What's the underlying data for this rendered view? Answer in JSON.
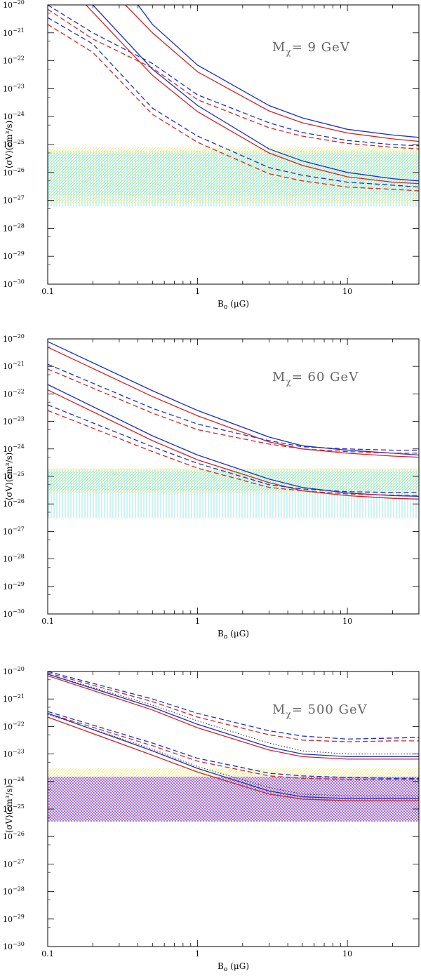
{
  "chart_data": [
    {
      "type": "line",
      "annotation_prefix": "M",
      "annotation_sub": "χ",
      "annotation_mass": "9 GeV",
      "xlabel_main": "B",
      "xlabel_sub": "o",
      "xlabel_unit": "(μG)",
      "ylabel": "⟨σV⟩(cm³/s)",
      "xscale": "log",
      "yscale": "log",
      "xlim": [
        0.1,
        30
      ],
      "ylim": [
        1e-30,
        1e-20
      ],
      "x_ticks": [
        {
          "v": 0.1,
          "label": "0.1"
        },
        {
          "v": 1,
          "label": "1"
        },
        {
          "v": 10,
          "label": "10"
        }
      ],
      "y_ticks": [
        {
          "exp": -20,
          "label": "10",
          "sup": "−20"
        },
        {
          "exp": -21,
          "label": "10",
          "sup": "−21"
        },
        {
          "exp": -22,
          "label": "10",
          "sup": "−22"
        },
        {
          "exp": -23,
          "label": "10",
          "sup": "−23"
        },
        {
          "exp": -24,
          "label": "10",
          "sup": "−24"
        },
        {
          "exp": -25,
          "label": "10",
          "sup": "−25"
        },
        {
          "exp": -26,
          "label": "10",
          "sup": "−26"
        },
        {
          "exp": -27,
          "label": "10",
          "sup": "−27"
        },
        {
          "exp": -28,
          "label": "10",
          "sup": "−28"
        },
        {
          "exp": -29,
          "label": "10",
          "sup": "−29"
        },
        {
          "exp": -30,
          "label": "10",
          "sup": "−30"
        }
      ],
      "bands": [
        {
          "name": "yellow-band",
          "color": "#f2ee7a",
          "pattern": "diag",
          "y_range": [
            8e-28,
            8e-26
          ]
        },
        {
          "name": "green-band",
          "color": "#a8e89a",
          "pattern": "diag",
          "y_range": [
            1.5e-27,
            5e-26
          ]
        },
        {
          "name": "cyan-band",
          "color": "#9be7ee",
          "pattern": "vert",
          "y_range": [
            6e-28,
            6e-26
          ]
        }
      ],
      "series": [
        {
          "name": "blue-solid-upper",
          "color": "#1a2fd0",
          "style": "solid",
          "x": [
            0.4,
            0.5,
            1,
            3,
            5,
            10,
            20,
            30
          ],
          "y": [
            1e-20,
            2e-21,
            7e-23,
            2.5e-24,
            9e-25,
            3.5e-25,
            2.2e-25,
            1.8e-25
          ]
        },
        {
          "name": "red-solid-upper",
          "color": "#d42424",
          "style": "solid",
          "x": [
            0.33,
            0.5,
            1,
            3,
            5,
            10,
            20,
            30
          ],
          "y": [
            1e-20,
            1e-21,
            4e-23,
            1.6e-24,
            6e-25,
            2.6e-25,
            1.6e-25,
            1.3e-25
          ]
        },
        {
          "name": "blue-dashed-upper",
          "color": "#1a2fd0",
          "style": "dashed",
          "x": [
            0.1,
            0.2,
            0.5,
            1,
            3,
            5,
            10,
            20,
            30
          ],
          "y": [
            1e-20,
            1e-21,
            8e-23,
            6e-24,
            6e-25,
            2.7e-25,
            1.4e-25,
            1e-25,
            9e-26
          ]
        },
        {
          "name": "red-dashed-upper",
          "color": "#d42424",
          "style": "dashed",
          "x": [
            0.1,
            0.2,
            0.5,
            1,
            3,
            5,
            10,
            20,
            30
          ],
          "y": [
            7e-21,
            6e-22,
            5.5e-23,
            4e-24,
            4e-25,
            2e-25,
            1.1e-25,
            8e-26,
            7e-26
          ]
        },
        {
          "name": "blue-solid-lower",
          "color": "#1a2fd0",
          "style": "solid",
          "x": [
            0.2,
            0.5,
            1,
            3,
            5,
            10,
            20,
            30
          ],
          "y": [
            1e-20,
            5e-23,
            2.5e-24,
            7e-26,
            2.6e-26,
            1e-26,
            6e-27,
            5e-27
          ]
        },
        {
          "name": "red-solid-lower",
          "color": "#d42424",
          "style": "solid",
          "x": [
            0.18,
            0.5,
            1,
            3,
            5,
            10,
            20,
            30
          ],
          "y": [
            1e-20,
            3e-23,
            1.5e-24,
            5e-26,
            1.8e-26,
            7e-27,
            4.5e-27,
            4e-27
          ]
        },
        {
          "name": "blue-dashed-lower",
          "color": "#1a2fd0",
          "style": "dashed",
          "x": [
            0.1,
            0.2,
            0.5,
            1,
            3,
            5,
            10,
            20,
            30
          ],
          "y": [
            3.5e-21,
            4e-22,
            2e-24,
            2e-25,
            1.5e-26,
            8e-27,
            4.5e-27,
            3.5e-27,
            3e-27
          ]
        },
        {
          "name": "red-dashed-lower",
          "color": "#d42424",
          "style": "dashed",
          "x": [
            0.1,
            0.2,
            0.5,
            1,
            3,
            5,
            10,
            20,
            30
          ],
          "y": [
            2e-21,
            2e-22,
            1.2e-24,
            1.2e-25,
            9e-27,
            5e-27,
            3e-27,
            2.5e-27,
            2.2e-27
          ]
        }
      ]
    },
    {
      "type": "line",
      "annotation_prefix": "M",
      "annotation_sub": "χ",
      "annotation_mass": "60 GeV",
      "xlabel_main": "B",
      "xlabel_sub": "o",
      "xlabel_unit": "(μG)",
      "ylabel": "⟨σV⟩(cm³/s)",
      "xscale": "log",
      "yscale": "log",
      "xlim": [
        0.1,
        30
      ],
      "ylim": [
        1e-30,
        1e-20
      ],
      "x_ticks": [
        {
          "v": 0.1,
          "label": "0.1"
        },
        {
          "v": 1,
          "label": "1"
        },
        {
          "v": 10,
          "label": "10"
        }
      ],
      "y_ticks": [
        {
          "exp": -20,
          "label": "10",
          "sup": "−20"
        },
        {
          "exp": -21,
          "label": "10",
          "sup": "−21"
        },
        {
          "exp": -22,
          "label": "10",
          "sup": "−22"
        },
        {
          "exp": -23,
          "label": "10",
          "sup": "−23"
        },
        {
          "exp": -24,
          "label": "10",
          "sup": "−24"
        },
        {
          "exp": -25,
          "label": "10",
          "sup": "−25"
        },
        {
          "exp": -26,
          "label": "10",
          "sup": "−26"
        },
        {
          "exp": -27,
          "label": "10",
          "sup": "−27"
        },
        {
          "exp": -28,
          "label": "10",
          "sup": "−28"
        },
        {
          "exp": -29,
          "label": "10",
          "sup": "−29"
        },
        {
          "exp": -30,
          "label": "10",
          "sup": "−30"
        }
      ],
      "bands": [
        {
          "name": "yellow-band",
          "color": "#f2ee7a",
          "pattern": "diag",
          "y_range": [
            2.5e-26,
            2e-25
          ]
        },
        {
          "name": "green-band",
          "color": "#a8e89a",
          "pattern": "diag",
          "y_range": [
            3e-26,
            1.5e-25
          ]
        },
        {
          "name": "cyan-band",
          "color": "#9be7ee",
          "pattern": "vert",
          "y_range": [
            3e-27,
            1.8e-25
          ]
        }
      ],
      "series": [
        {
          "name": "blue-solid-upper",
          "color": "#1a2fd0",
          "style": "solid",
          "x": [
            0.1,
            0.5,
            1,
            3,
            5,
            10,
            20,
            30
          ],
          "y": [
            8e-21,
            1.3e-22,
            2.5e-23,
            2.7e-24,
            1.3e-24,
            9e-25,
            7e-25,
            6e-25
          ]
        },
        {
          "name": "red-solid-upper",
          "color": "#d42424",
          "style": "solid",
          "x": [
            0.1,
            0.5,
            1,
            3,
            5,
            10,
            20,
            30
          ],
          "y": [
            5e-21,
            8e-23,
            1.6e-23,
            1.8e-24,
            1e-24,
            7e-25,
            5.5e-25,
            5e-25
          ]
        },
        {
          "name": "blue-dashed-upper",
          "color": "#1a2fd0",
          "style": "dashed",
          "x": [
            0.1,
            0.5,
            1,
            3,
            5,
            10,
            20,
            30
          ],
          "y": [
            1.2e-21,
            3e-23,
            8e-24,
            2e-24,
            1.2e-24,
            1e-24,
            9e-25,
            9e-25
          ]
        },
        {
          "name": "red-dashed-upper",
          "color": "#d42424",
          "style": "dashed",
          "x": [
            0.1,
            0.5,
            1,
            3,
            5,
            10,
            20,
            30
          ],
          "y": [
            8e-22,
            2e-23,
            5e-24,
            1.5e-24,
            1e-24,
            8e-25,
            7e-25,
            7e-25
          ]
        },
        {
          "name": "blue-solid-lower",
          "color": "#1a2fd0",
          "style": "solid",
          "x": [
            0.1,
            0.5,
            1,
            3,
            5,
            10,
            20,
            30
          ],
          "y": [
            2.2e-22,
            3e-24,
            6e-25,
            8e-26,
            4e-26,
            2.5e-26,
            2e-26,
            1.9e-26
          ]
        },
        {
          "name": "red-solid-lower",
          "color": "#d42424",
          "style": "solid",
          "x": [
            0.1,
            0.5,
            1,
            3,
            5,
            10,
            20,
            30
          ],
          "y": [
            1.4e-22,
            2e-24,
            4e-25,
            6e-26,
            3e-26,
            2e-26,
            1.6e-26,
            1.5e-26
          ]
        },
        {
          "name": "blue-dashed-lower",
          "color": "#1a2fd0",
          "style": "dashed",
          "x": [
            0.1,
            0.5,
            1,
            3,
            5,
            10,
            20,
            30
          ],
          "y": [
            4e-23,
            1.2e-24,
            3e-25,
            5e-26,
            3.5e-26,
            2.8e-26,
            2.6e-26,
            2.6e-26
          ]
        },
        {
          "name": "red-dashed-lower",
          "color": "#d42424",
          "style": "dashed",
          "x": [
            0.1,
            0.5,
            1,
            3,
            5,
            10,
            20,
            30
          ],
          "y": [
            2.5e-23,
            8e-25,
            2e-25,
            4e-26,
            3e-26,
            2.3e-26,
            2.1e-26,
            2e-26
          ]
        }
      ]
    },
    {
      "type": "line",
      "annotation_prefix": "M",
      "annotation_sub": "χ",
      "annotation_mass": "500 GeV",
      "xlabel_main": "B",
      "xlabel_sub": "o",
      "xlabel_unit": "(μG)",
      "ylabel": "⟨σV⟩(cm³/s)",
      "xscale": "log",
      "yscale": "log",
      "xlim": [
        0.1,
        30
      ],
      "ylim": [
        1e-30,
        1e-20
      ],
      "x_ticks": [
        {
          "v": 0.1,
          "label": "0.1"
        },
        {
          "v": 1,
          "label": "1"
        },
        {
          "v": 10,
          "label": "10"
        }
      ],
      "y_ticks": [
        {
          "exp": -20,
          "label": "10",
          "sup": "−20"
        },
        {
          "exp": -21,
          "label": "10",
          "sup": "−21"
        },
        {
          "exp": -22,
          "label": "10",
          "sup": "−22"
        },
        {
          "exp": -23,
          "label": "10",
          "sup": "−23"
        },
        {
          "exp": -24,
          "label": "10",
          "sup": "−24"
        },
        {
          "exp": -25,
          "label": "10",
          "sup": "−25"
        },
        {
          "exp": -26,
          "label": "10",
          "sup": "−26"
        },
        {
          "exp": -27,
          "label": "10",
          "sup": "−27"
        },
        {
          "exp": -28,
          "label": "10",
          "sup": "−28"
        },
        {
          "exp": -29,
          "label": "10",
          "sup": "−29"
        },
        {
          "exp": -30,
          "label": "10",
          "sup": "−30"
        }
      ],
      "bands": [
        {
          "name": "yellow-band",
          "color": "#f2ee7a",
          "pattern": "diag",
          "y_range": [
            1.5e-24,
            3e-24
          ]
        },
        {
          "name": "magenta-band",
          "color": "#e24fb0",
          "pattern": "diag",
          "y_range": [
            3.5e-26,
            1.5e-24
          ]
        },
        {
          "name": "blue-band",
          "color": "#5f6fe6",
          "pattern": "antidiag",
          "y_range": [
            3.5e-26,
            1.5e-24
          ]
        }
      ],
      "series": [
        {
          "name": "blue-dashed-upper",
          "color": "#1a2fd0",
          "style": "dashed",
          "x": [
            0.1,
            0.5,
            1,
            3,
            5,
            10,
            20,
            30
          ],
          "y": [
            1e-20,
            1e-21,
            3e-22,
            7e-23,
            4.5e-23,
            3.5e-23,
            3.8e-23,
            4e-23
          ]
        },
        {
          "name": "red-dashed-upper",
          "color": "#d42424",
          "style": "dashed",
          "x": [
            0.1,
            0.5,
            1,
            3,
            5,
            10,
            20,
            30
          ],
          "y": [
            9e-21,
            8e-22,
            2.2e-22,
            5e-23,
            3.2e-23,
            2.8e-23,
            3e-23,
            3e-23
          ]
        },
        {
          "name": "black-dotted-upper",
          "color": "#333333",
          "style": "dotted",
          "x": [
            0.1,
            0.5,
            1,
            3,
            5,
            10,
            20,
            30
          ],
          "y": [
            8e-21,
            6e-22,
            1.6e-22,
            2.5e-23,
            1.3e-23,
            1e-23,
            1e-23,
            1e-23
          ]
        },
        {
          "name": "blue-solid-upper",
          "color": "#1a2fd0",
          "style": "solid",
          "x": [
            0.1,
            0.5,
            1,
            3,
            5,
            10,
            20,
            30
          ],
          "y": [
            8e-21,
            5e-22,
            1.2e-22,
            1.8e-23,
            1e-23,
            8e-24,
            8e-24,
            8e-24
          ]
        },
        {
          "name": "red-solid-upper",
          "color": "#d42424",
          "style": "solid",
          "x": [
            0.1,
            0.5,
            1,
            3,
            5,
            10,
            20,
            30
          ],
          "y": [
            7e-21,
            4e-22,
            9e-23,
            1.4e-23,
            8e-24,
            6.5e-24,
            6.5e-24,
            6.5e-24
          ]
        },
        {
          "name": "blue-dashed-lower",
          "color": "#1a2fd0",
          "style": "dashed",
          "x": [
            0.1,
            0.5,
            1,
            3,
            5,
            10,
            20,
            30
          ],
          "y": [
            3.5e-22,
            2.5e-23,
            7e-24,
            2e-24,
            1.6e-24,
            1.4e-24,
            1.3e-24,
            1.3e-24
          ]
        },
        {
          "name": "red-dashed-lower",
          "color": "#d42424",
          "style": "dashed",
          "x": [
            0.1,
            0.5,
            1,
            3,
            5,
            10,
            20,
            30
          ],
          "y": [
            3e-22,
            2e-23,
            5.5e-24,
            1.6e-24,
            1.3e-24,
            1.2e-24,
            1.2e-24,
            1.2e-24
          ]
        },
        {
          "name": "black-dotted-lower",
          "color": "#333333",
          "style": "dotted",
          "x": [
            0.1,
            0.5,
            1,
            3,
            5,
            10,
            20,
            30
          ],
          "y": [
            2.8e-22,
            1.5e-23,
            3.5e-24,
            6e-25,
            3.5e-25,
            3e-25,
            3e-25,
            3e-25
          ]
        },
        {
          "name": "blue-solid-lower",
          "color": "#1a2fd0",
          "style": "solid",
          "x": [
            0.1,
            0.5,
            1,
            3,
            5,
            10,
            20,
            30
          ],
          "y": [
            3e-22,
            1.3e-23,
            3e-24,
            4.5e-25,
            2.8e-25,
            2.4e-25,
            2.4e-25,
            2.4e-25
          ]
        },
        {
          "name": "red-solid-lower",
          "color": "#d42424",
          "style": "solid",
          "x": [
            0.1,
            0.5,
            1,
            3,
            5,
            10,
            20,
            30
          ],
          "y": [
            2.2e-22,
            9e-24,
            2.2e-24,
            3.5e-25,
            2.3e-25,
            2e-25,
            2e-25,
            2e-25
          ]
        }
      ]
    }
  ]
}
